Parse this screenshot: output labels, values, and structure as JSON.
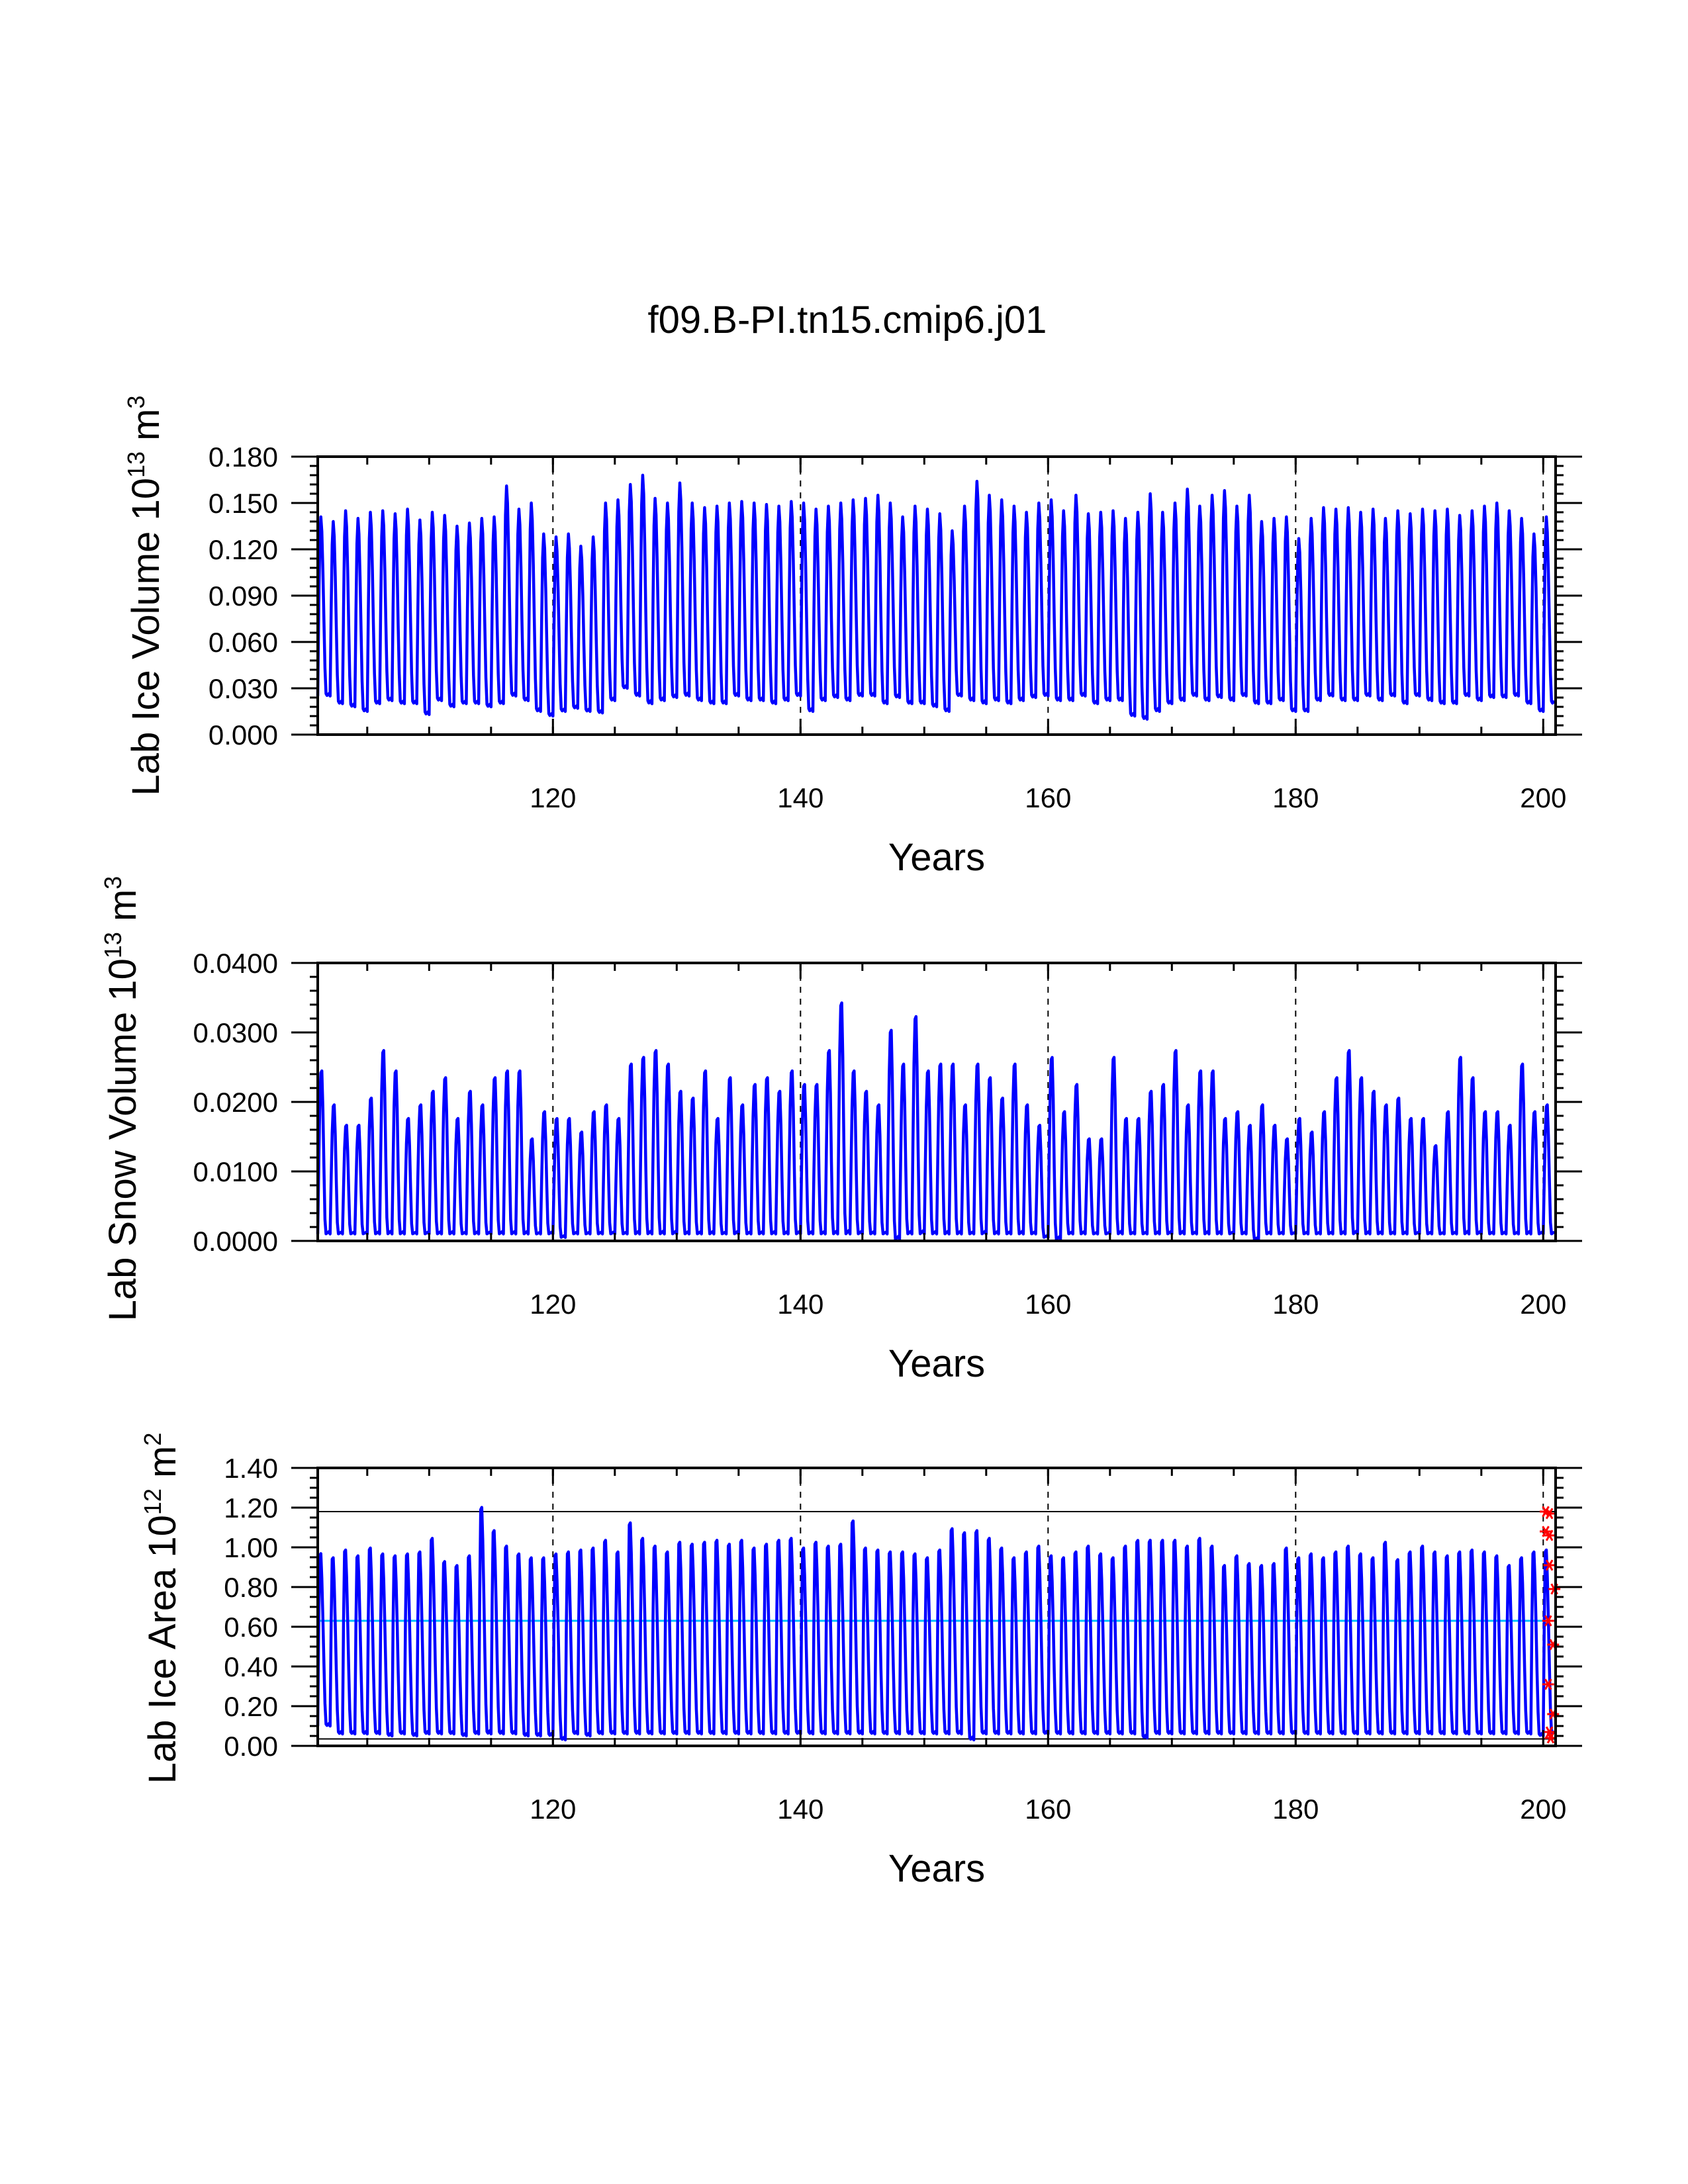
{
  "title": "f09.B-PI.tn15.cmip6.j01",
  "colors": {
    "series": "#0000ff",
    "dashed": "#000000",
    "mean_line": "#00bfff",
    "ref_line": "#000000",
    "markers": "#ff0000"
  },
  "chart_data": [
    {
      "type": "line",
      "name": "lab-ice-volume",
      "ylabel_main": "Lab Ice Volume 10",
      "ylabel_exp": "13",
      "ylabel_unit": " m",
      "ylabel_unit_exp": "3",
      "xlabel": "Years",
      "xlim": [
        101,
        201
      ],
      "ylim": [
        0,
        0.18
      ],
      "x_ticks": [
        120,
        140,
        160,
        180,
        200
      ],
      "x_tick_labels": [
        "120",
        "140",
        "160",
        "180",
        "200"
      ],
      "y_ticks": [
        0,
        0.03,
        0.06,
        0.09,
        0.12,
        0.15,
        0.18
      ],
      "y_tick_labels": [
        "0.000",
        "0.030",
        "0.060",
        "0.090",
        "0.120",
        "0.150",
        "0.180"
      ],
      "x_minor_step": 5,
      "y_minor_step": 0.006,
      "vlines_dashed": [
        120,
        140,
        160,
        180,
        200
      ],
      "series": [
        {
          "name": "monthly",
          "start_year": 101,
          "seasonal_peak_phase": 0.25,
          "seasonal_min_phase": 0.7,
          "annual_max": [
            0.141,
            0.138,
            0.145,
            0.14,
            0.144,
            0.145,
            0.143,
            0.146,
            0.139,
            0.144,
            0.142,
            0.135,
            0.137,
            0.14,
            0.141,
            0.161,
            0.146,
            0.15,
            0.13,
            0.128,
            0.13,
            0.122,
            0.128,
            0.15,
            0.152,
            0.162,
            0.168,
            0.153,
            0.15,
            0.163,
            0.15,
            0.147,
            0.148,
            0.15,
            0.151,
            0.15,
            0.149,
            0.148,
            0.151,
            0.15,
            0.146,
            0.148,
            0.15,
            0.152,
            0.153,
            0.155,
            0.15,
            0.141,
            0.148,
            0.146,
            0.143,
            0.132,
            0.148,
            0.164,
            0.155,
            0.152,
            0.148,
            0.144,
            0.15,
            0.152,
            0.145,
            0.155,
            0.143,
            0.144,
            0.145,
            0.14,
            0.144,
            0.156,
            0.144,
            0.15,
            0.159,
            0.148,
            0.155,
            0.158,
            0.148,
            0.155,
            0.138,
            0.14,
            0.141,
            0.127,
            0.14,
            0.147,
            0.146,
            0.147,
            0.144,
            0.146,
            0.14,
            0.145,
            0.143,
            0.146,
            0.145,
            0.146,
            0.142,
            0.145,
            0.148,
            0.15,
            0.145,
            0.14,
            0.13,
            0.141
          ],
          "annual_min": [
            0.025,
            0.02,
            0.018,
            0.015,
            0.02,
            0.022,
            0.02,
            0.02,
            0.013,
            0.022,
            0.018,
            0.02,
            0.02,
            0.018,
            0.02,
            0.025,
            0.022,
            0.015,
            0.012,
            0.015,
            0.017,
            0.015,
            0.014,
            0.022,
            0.03,
            0.025,
            0.02,
            0.022,
            0.024,
            0.025,
            0.022,
            0.02,
            0.02,
            0.025,
            0.022,
            0.022,
            0.02,
            0.022,
            0.025,
            0.015,
            0.022,
            0.024,
            0.022,
            0.025,
            0.025,
            0.02,
            0.024,
            0.02,
            0.02,
            0.018,
            0.015,
            0.025,
            0.022,
            0.02,
            0.022,
            0.02,
            0.022,
            0.024,
            0.025,
            0.022,
            0.022,
            0.025,
            0.02,
            0.022,
            0.022,
            0.012,
            0.01,
            0.015,
            0.02,
            0.022,
            0.025,
            0.022,
            0.024,
            0.022,
            0.025,
            0.02,
            0.02,
            0.022,
            0.015,
            0.015,
            0.022,
            0.025,
            0.022,
            0.022,
            0.025,
            0.022,
            0.025,
            0.02,
            0.025,
            0.022,
            0.02,
            0.02,
            0.025,
            0.022,
            0.024,
            0.024,
            0.025,
            0.02,
            0.015,
            0.02
          ]
        }
      ]
    },
    {
      "type": "line",
      "name": "lab-snow-volume",
      "ylabel_main": "Lab Snow Volume 10",
      "ylabel_exp": "13",
      "ylabel_unit": " m",
      "ylabel_unit_exp": "3",
      "xlabel": "Years",
      "xlim": [
        101,
        201
      ],
      "ylim": [
        0,
        0.04
      ],
      "x_ticks": [
        120,
        140,
        160,
        180,
        200
      ],
      "x_tick_labels": [
        "120",
        "140",
        "160",
        "180",
        "200"
      ],
      "y_ticks": [
        0,
        0.01,
        0.02,
        0.03,
        0.04
      ],
      "y_tick_labels": [
        "0.0000",
        "0.0100",
        "0.0200",
        "0.0300",
        "0.0400"
      ],
      "x_minor_step": 5,
      "y_minor_step": 0.002,
      "vlines_dashed": [
        120,
        140,
        160,
        180,
        200
      ],
      "series": [
        {
          "name": "monthly",
          "start_year": 101,
          "seasonal_peak_phase": 0.3,
          "seasonal_min_phase": 0.65,
          "annual_max": [
            0.025,
            0.02,
            0.017,
            0.017,
            0.021,
            0.028,
            0.025,
            0.018,
            0.02,
            0.022,
            0.024,
            0.018,
            0.022,
            0.02,
            0.024,
            0.025,
            0.025,
            0.015,
            0.019,
            0.018,
            0.018,
            0.016,
            0.019,
            0.02,
            0.018,
            0.026,
            0.027,
            0.028,
            0.026,
            0.022,
            0.021,
            0.025,
            0.018,
            0.024,
            0.02,
            0.023,
            0.024,
            0.022,
            0.025,
            0.023,
            0.023,
            0.028,
            0.035,
            0.025,
            0.022,
            0.02,
            0.031,
            0.026,
            0.033,
            0.025,
            0.026,
            0.026,
            0.02,
            0.026,
            0.024,
            0.021,
            0.026,
            0.02,
            0.017,
            0.027,
            0.019,
            0.023,
            0.015,
            0.015,
            0.027,
            0.018,
            0.018,
            0.022,
            0.023,
            0.028,
            0.02,
            0.025,
            0.025,
            0.018,
            0.019,
            0.017,
            0.02,
            0.017,
            0.015,
            0.018,
            0.016,
            0.019,
            0.024,
            0.028,
            0.024,
            0.022,
            0.02,
            0.021,
            0.018,
            0.018,
            0.014,
            0.019,
            0.027,
            0.024,
            0.019,
            0.019,
            0.017,
            0.026,
            0.019,
            0.02
          ],
          "annual_min": [
            0.001,
            0.001,
            0.001,
            0.001,
            0.001,
            0.001,
            0.001,
            0.001,
            0.001,
            0.001,
            0.001,
            0.001,
            0.001,
            0.001,
            0.001,
            0.001,
            0.001,
            0.001,
            0.001,
            0.0005,
            0.001,
            0.001,
            0.001,
            0.001,
            0.001,
            0.001,
            0.001,
            0.001,
            0.001,
            0.001,
            0.001,
            0.001,
            0.001,
            0.001,
            0.001,
            0.001,
            0.001,
            0.001,
            0.001,
            0.001,
            0.001,
            0.001,
            0.001,
            0.001,
            0.001,
            0.001,
            0.0002,
            0.001,
            0.001,
            0.001,
            0.001,
            0.001,
            0.001,
            0.001,
            0.001,
            0.001,
            0.001,
            0.001,
            0.0005,
            0.0002,
            0.001,
            0.001,
            0.001,
            0.001,
            0.001,
            0.001,
            0.001,
            0.001,
            0.001,
            0.001,
            0.001,
            0.001,
            0.001,
            0.001,
            0.001,
            0.0002,
            0.001,
            0.001,
            0.001,
            0.001,
            0.001,
            0.001,
            0.001,
            0.001,
            0.001,
            0.001,
            0.001,
            0.001,
            0.001,
            0.001,
            0.001,
            0.001,
            0.001,
            0.001,
            0.001,
            0.001,
            0.001,
            0.001,
            0.001,
            0.001
          ]
        }
      ]
    },
    {
      "type": "line",
      "name": "lab-ice-area",
      "ylabel_main": "Lab Ice Area 10",
      "ylabel_exp": "12",
      "ylabel_unit": " m",
      "ylabel_unit_exp": "2",
      "xlabel": "Years",
      "xlim": [
        101,
        201
      ],
      "ylim": [
        0,
        1.4
      ],
      "x_ticks": [
        120,
        140,
        160,
        180,
        200
      ],
      "x_tick_labels": [
        "120",
        "140",
        "160",
        "180",
        "200"
      ],
      "y_ticks": [
        0,
        0.2,
        0.4,
        0.6,
        0.8,
        1.0,
        1.2,
        1.4
      ],
      "y_tick_labels": [
        "0.00",
        "0.20",
        "0.40",
        "0.60",
        "0.80",
        "1.00",
        "1.20",
        "1.40"
      ],
      "x_minor_step": 5,
      "y_minor_step": 0.05,
      "vlines_dashed": [
        120,
        140,
        160,
        180,
        200
      ],
      "hlines": [
        {
          "value": 1.18,
          "kind": "ref"
        },
        {
          "value": 0.63,
          "kind": "mean"
        },
        {
          "value": 0.035,
          "kind": "ref"
        }
      ],
      "markers": [
        {
          "x": 200.2,
          "y": 1.18
        },
        {
          "x": 200.5,
          "y": 1.17
        },
        {
          "x": 200.2,
          "y": 1.08
        },
        {
          "x": 200.5,
          "y": 1.06
        },
        {
          "x": 200.5,
          "y": 0.91
        },
        {
          "x": 200.9,
          "y": 0.79
        },
        {
          "x": 200.4,
          "y": 0.63
        },
        {
          "x": 200.8,
          "y": 0.51
        },
        {
          "x": 200.4,
          "y": 0.31
        },
        {
          "x": 200.8,
          "y": 0.16
        },
        {
          "x": 200.5,
          "y": 0.07
        },
        {
          "x": 200.6,
          "y": 0.04
        }
      ],
      "series": [
        {
          "name": "monthly",
          "start_year": 101,
          "seasonal_peak_phase": 0.2,
          "seasonal_min_phase": 0.7,
          "annual_max": [
            0.99,
            0.97,
            1.01,
            0.98,
            1.02,
            0.99,
            0.98,
            0.99,
            1.0,
            1.07,
            0.95,
            0.93,
            0.98,
            1.23,
            1.11,
            1.03,
            0.99,
            0.97,
            0.97,
            0.99,
            1.0,
            1.01,
            1.02,
            1.06,
            1.0,
            1.15,
            1.07,
            1.03,
            1.0,
            1.05,
            1.04,
            1.05,
            1.06,
            1.04,
            1.06,
            1.02,
            1.04,
            1.06,
            1.07,
            1.02,
            1.05,
            1.03,
            1.04,
            1.16,
            1.02,
            1.01,
            1.0,
            1.0,
            0.99,
            0.97,
            1.01,
            1.12,
            1.1,
            1.11,
            1.07,
            1.02,
            0.97,
            1.0,
            1.03,
            0.98,
            0.97,
            1.0,
            1.03,
            0.99,
            0.97,
            1.03,
            1.06,
            1.06,
            1.06,
            1.06,
            1.03,
            1.07,
            1.03,
            0.93,
            0.98,
            0.94,
            0.93,
            0.94,
            1.02,
            0.97,
            0.99,
            0.97,
            1.0,
            1.03,
            0.99,
            0.97,
            1.05,
            0.96,
            1.0,
            1.03,
            1.0,
            0.98,
            1.0,
            1.01,
            1.0,
            0.98,
            0.93,
            0.97,
            1.0,
            1.01
          ],
          "annual_min": [
            0.1,
            0.06,
            0.06,
            0.06,
            0.06,
            0.05,
            0.06,
            0.05,
            0.06,
            0.06,
            0.06,
            0.05,
            0.06,
            0.06,
            0.06,
            0.06,
            0.05,
            0.05,
            0.05,
            0.03,
            0.06,
            0.05,
            0.06,
            0.06,
            0.06,
            0.06,
            0.06,
            0.06,
            0.06,
            0.06,
            0.06,
            0.06,
            0.06,
            0.06,
            0.06,
            0.06,
            0.06,
            0.06,
            0.06,
            0.06,
            0.06,
            0.06,
            0.06,
            0.06,
            0.06,
            0.06,
            0.06,
            0.06,
            0.06,
            0.06,
            0.06,
            0.06,
            0.03,
            0.06,
            0.06,
            0.06,
            0.06,
            0.06,
            0.06,
            0.06,
            0.06,
            0.06,
            0.06,
            0.06,
            0.06,
            0.06,
            0.04,
            0.06,
            0.06,
            0.06,
            0.06,
            0.06,
            0.06,
            0.06,
            0.06,
            0.06,
            0.06,
            0.06,
            0.06,
            0.06,
            0.06,
            0.06,
            0.06,
            0.06,
            0.06,
            0.06,
            0.06,
            0.06,
            0.06,
            0.06,
            0.06,
            0.06,
            0.06,
            0.06,
            0.06,
            0.06,
            0.06,
            0.06,
            0.05,
            0.06
          ]
        }
      ]
    }
  ]
}
